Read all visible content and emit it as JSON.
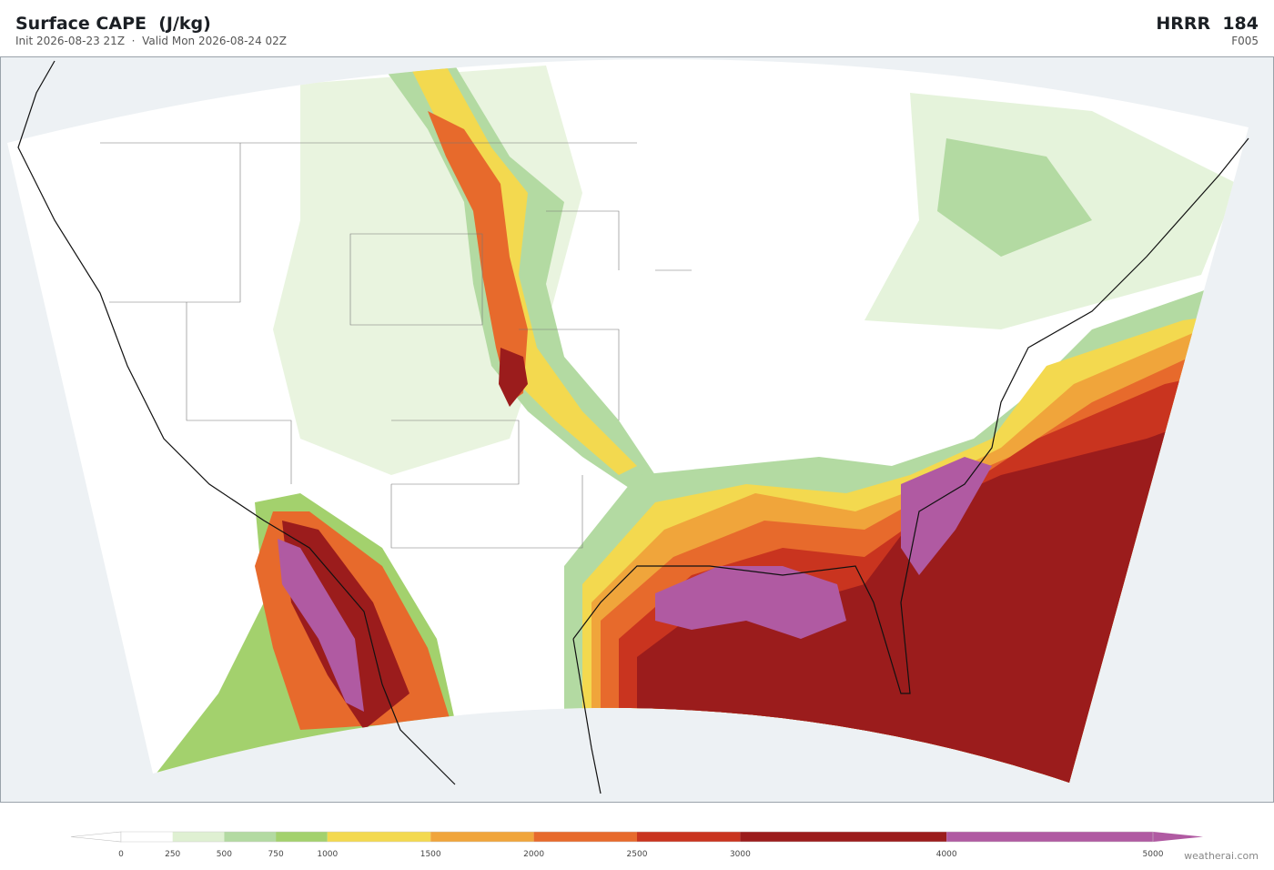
{
  "header": {
    "title": "Surface CAPE  (J/kg)",
    "subtitle": "Init 2026-08-23 21Z  ·  Valid Mon 2026-08-24 02Z",
    "model": "HRRR  184",
    "forecast_hour": "F005"
  },
  "colorbar": {
    "ticks": [
      0,
      250,
      500,
      750,
      1000,
      1500,
      2000,
      2500,
      3000,
      4000,
      5000
    ],
    "colors": [
      "#ffffff",
      "#dff0d2",
      "#b3daa2",
      "#a3d16d",
      "#f3d94f",
      "#f0a53b",
      "#e76a2c",
      "#c9341f",
      "#9b1c1c",
      "#b05aa2"
    ]
  },
  "footer": {
    "credit": "weatherai.com"
  }
}
